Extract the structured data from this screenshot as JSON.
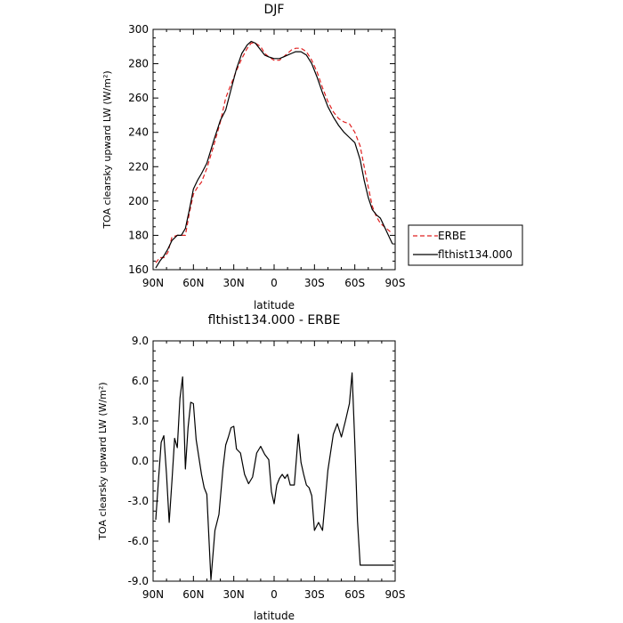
{
  "chart_data": [
    {
      "type": "line",
      "title": "DJF",
      "xlabel": "latitude",
      "ylabel": "TOA clearsky upward LW (W/m²)",
      "xlim": [
        90,
        -90
      ],
      "ylim": [
        160,
        300
      ],
      "xticks": [
        90,
        60,
        30,
        0,
        -30,
        -60,
        -90
      ],
      "xtick_labels": [
        "90N",
        "60N",
        "30N",
        "0",
        "30S",
        "60S",
        "90S"
      ],
      "yticks": [
        160,
        180,
        200,
        220,
        240,
        260,
        280,
        300
      ],
      "ytick_labels": [
        "160",
        "180",
        "200",
        "220",
        "240",
        "260",
        "280",
        "300"
      ],
      "legend": {
        "position": "right-outside"
      },
      "series": [
        {
          "name": "ERBE",
          "color": "#e02020",
          "dash": "dashed",
          "x": [
            88,
            85,
            82,
            79,
            76,
            72,
            69,
            66,
            63,
            60,
            57,
            54,
            50,
            45,
            40,
            36,
            32,
            28,
            24,
            20,
            17,
            14,
            10,
            7,
            4,
            0,
            -4,
            -7,
            -10,
            -13,
            -16,
            -20,
            -24,
            -28,
            -32,
            -36,
            -40,
            -44,
            -48,
            -52,
            -56,
            -60,
            -64,
            -67,
            -70,
            -73,
            -76,
            -79,
            -82,
            -85,
            -88
          ],
          "y": [
            164,
            167,
            167,
            170,
            179,
            180,
            180,
            180,
            193,
            204,
            208,
            211,
            219,
            232,
            246,
            260,
            268,
            276,
            283,
            289,
            292,
            292,
            290,
            286,
            284,
            282,
            282,
            284,
            286,
            288,
            289,
            289,
            287,
            282,
            275,
            266,
            258,
            252,
            248,
            246,
            245,
            240,
            232,
            220,
            208,
            197,
            191,
            187,
            185,
            183,
            181
          ]
        },
        {
          "name": "flthist134.000",
          "color": "#000000",
          "dash": "solid",
          "x": [
            88,
            85,
            82,
            79,
            76,
            72,
            69,
            66,
            63,
            60,
            57,
            54,
            50,
            45,
            40,
            36,
            32,
            28,
            24,
            20,
            17,
            14,
            10,
            7,
            4,
            0,
            -4,
            -7,
            -10,
            -13,
            -16,
            -20,
            -24,
            -28,
            -32,
            -36,
            -40,
            -44,
            -48,
            -52,
            -56,
            -60,
            -64,
            -67,
            -70,
            -73,
            -76,
            -79,
            -82,
            -85,
            -88
          ],
          "y": [
            161,
            165,
            168,
            172,
            177,
            180,
            180,
            184,
            195,
            207,
            212,
            216,
            222,
            235,
            247,
            253,
            265,
            277,
            286,
            291,
            293,
            292,
            288,
            285,
            284,
            283,
            283,
            284,
            285,
            286,
            287,
            287,
            285,
            280,
            272,
            263,
            255,
            249,
            244,
            240,
            237,
            234,
            224,
            212,
            202,
            195,
            192,
            190,
            185,
            180,
            175
          ]
        }
      ]
    },
    {
      "type": "line",
      "title": "flthist134.000 - ERBE",
      "xlabel": "latitude",
      "ylabel": "TOA clearsky upward LW (W/m²)",
      "xlim": [
        90,
        -90
      ],
      "ylim": [
        -9,
        9
      ],
      "xticks": [
        90,
        60,
        30,
        0,
        -30,
        -60,
        -90
      ],
      "xtick_labels": [
        "90N",
        "60N",
        "30N",
        "0",
        "30S",
        "60S",
        "90S"
      ],
      "yticks": [
        -9,
        -6,
        -3,
        0,
        3,
        6,
        9
      ],
      "ytick_labels": [
        "-9.0",
        "-6.0",
        "-3.0",
        "0.0",
        "3.0",
        "6.0",
        "9.0"
      ],
      "series": [
        {
          "name": "",
          "color": "#000000",
          "dash": "solid",
          "x": [
            88,
            86,
            84,
            82,
            80,
            78,
            76,
            74,
            72,
            70,
            68,
            66,
            64,
            62,
            60,
            58,
            56,
            54,
            52,
            50,
            47,
            44,
            41,
            38,
            36,
            34,
            32,
            30,
            28,
            25,
            22,
            19,
            16,
            13,
            10,
            7,
            4,
            2,
            0,
            -2,
            -4,
            -6,
            -8,
            -10,
            -12,
            -15,
            -18,
            -20,
            -22,
            -24,
            -26,
            -28,
            -30,
            -33,
            -36,
            -40,
            -44,
            -47,
            -50,
            -53,
            -56,
            -58,
            -60,
            -62,
            -64,
            -66,
            -68,
            -70,
            -72,
            -75,
            -78,
            -81,
            -84,
            -87,
            -89
          ],
          "y": [
            -4.4,
            -1.5,
            1.4,
            1.9,
            -1.0,
            -4.6,
            -1.5,
            1.7,
            1.0,
            4.7,
            6.3,
            -0.6,
            2.5,
            4.4,
            4.3,
            1.6,
            0.3,
            -1.0,
            -2.0,
            -2.5,
            -8.9,
            -5.2,
            -4.0,
            -0.5,
            1.2,
            1.8,
            2.5,
            2.6,
            0.9,
            0.6,
            -1.0,
            -1.7,
            -1.2,
            0.6,
            1.1,
            0.5,
            0.1,
            -2.3,
            -3.2,
            -1.8,
            -1.3,
            -1.0,
            -1.3,
            -1.0,
            -1.8,
            -1.8,
            2.0,
            -0.1,
            -1.0,
            -1.8,
            -2.0,
            -2.6,
            -5.2,
            -4.6,
            -5.2,
            -0.7,
            2.0,
            2.8,
            1.8,
            3.0,
            4.3,
            6.6,
            1.3,
            -4.5,
            -7.8,
            -7.8,
            -7.8,
            -7.8,
            -7.8,
            -7.8,
            -7.8,
            -7.8,
            -7.8,
            -7.8,
            -7.8
          ]
        }
      ]
    }
  ]
}
